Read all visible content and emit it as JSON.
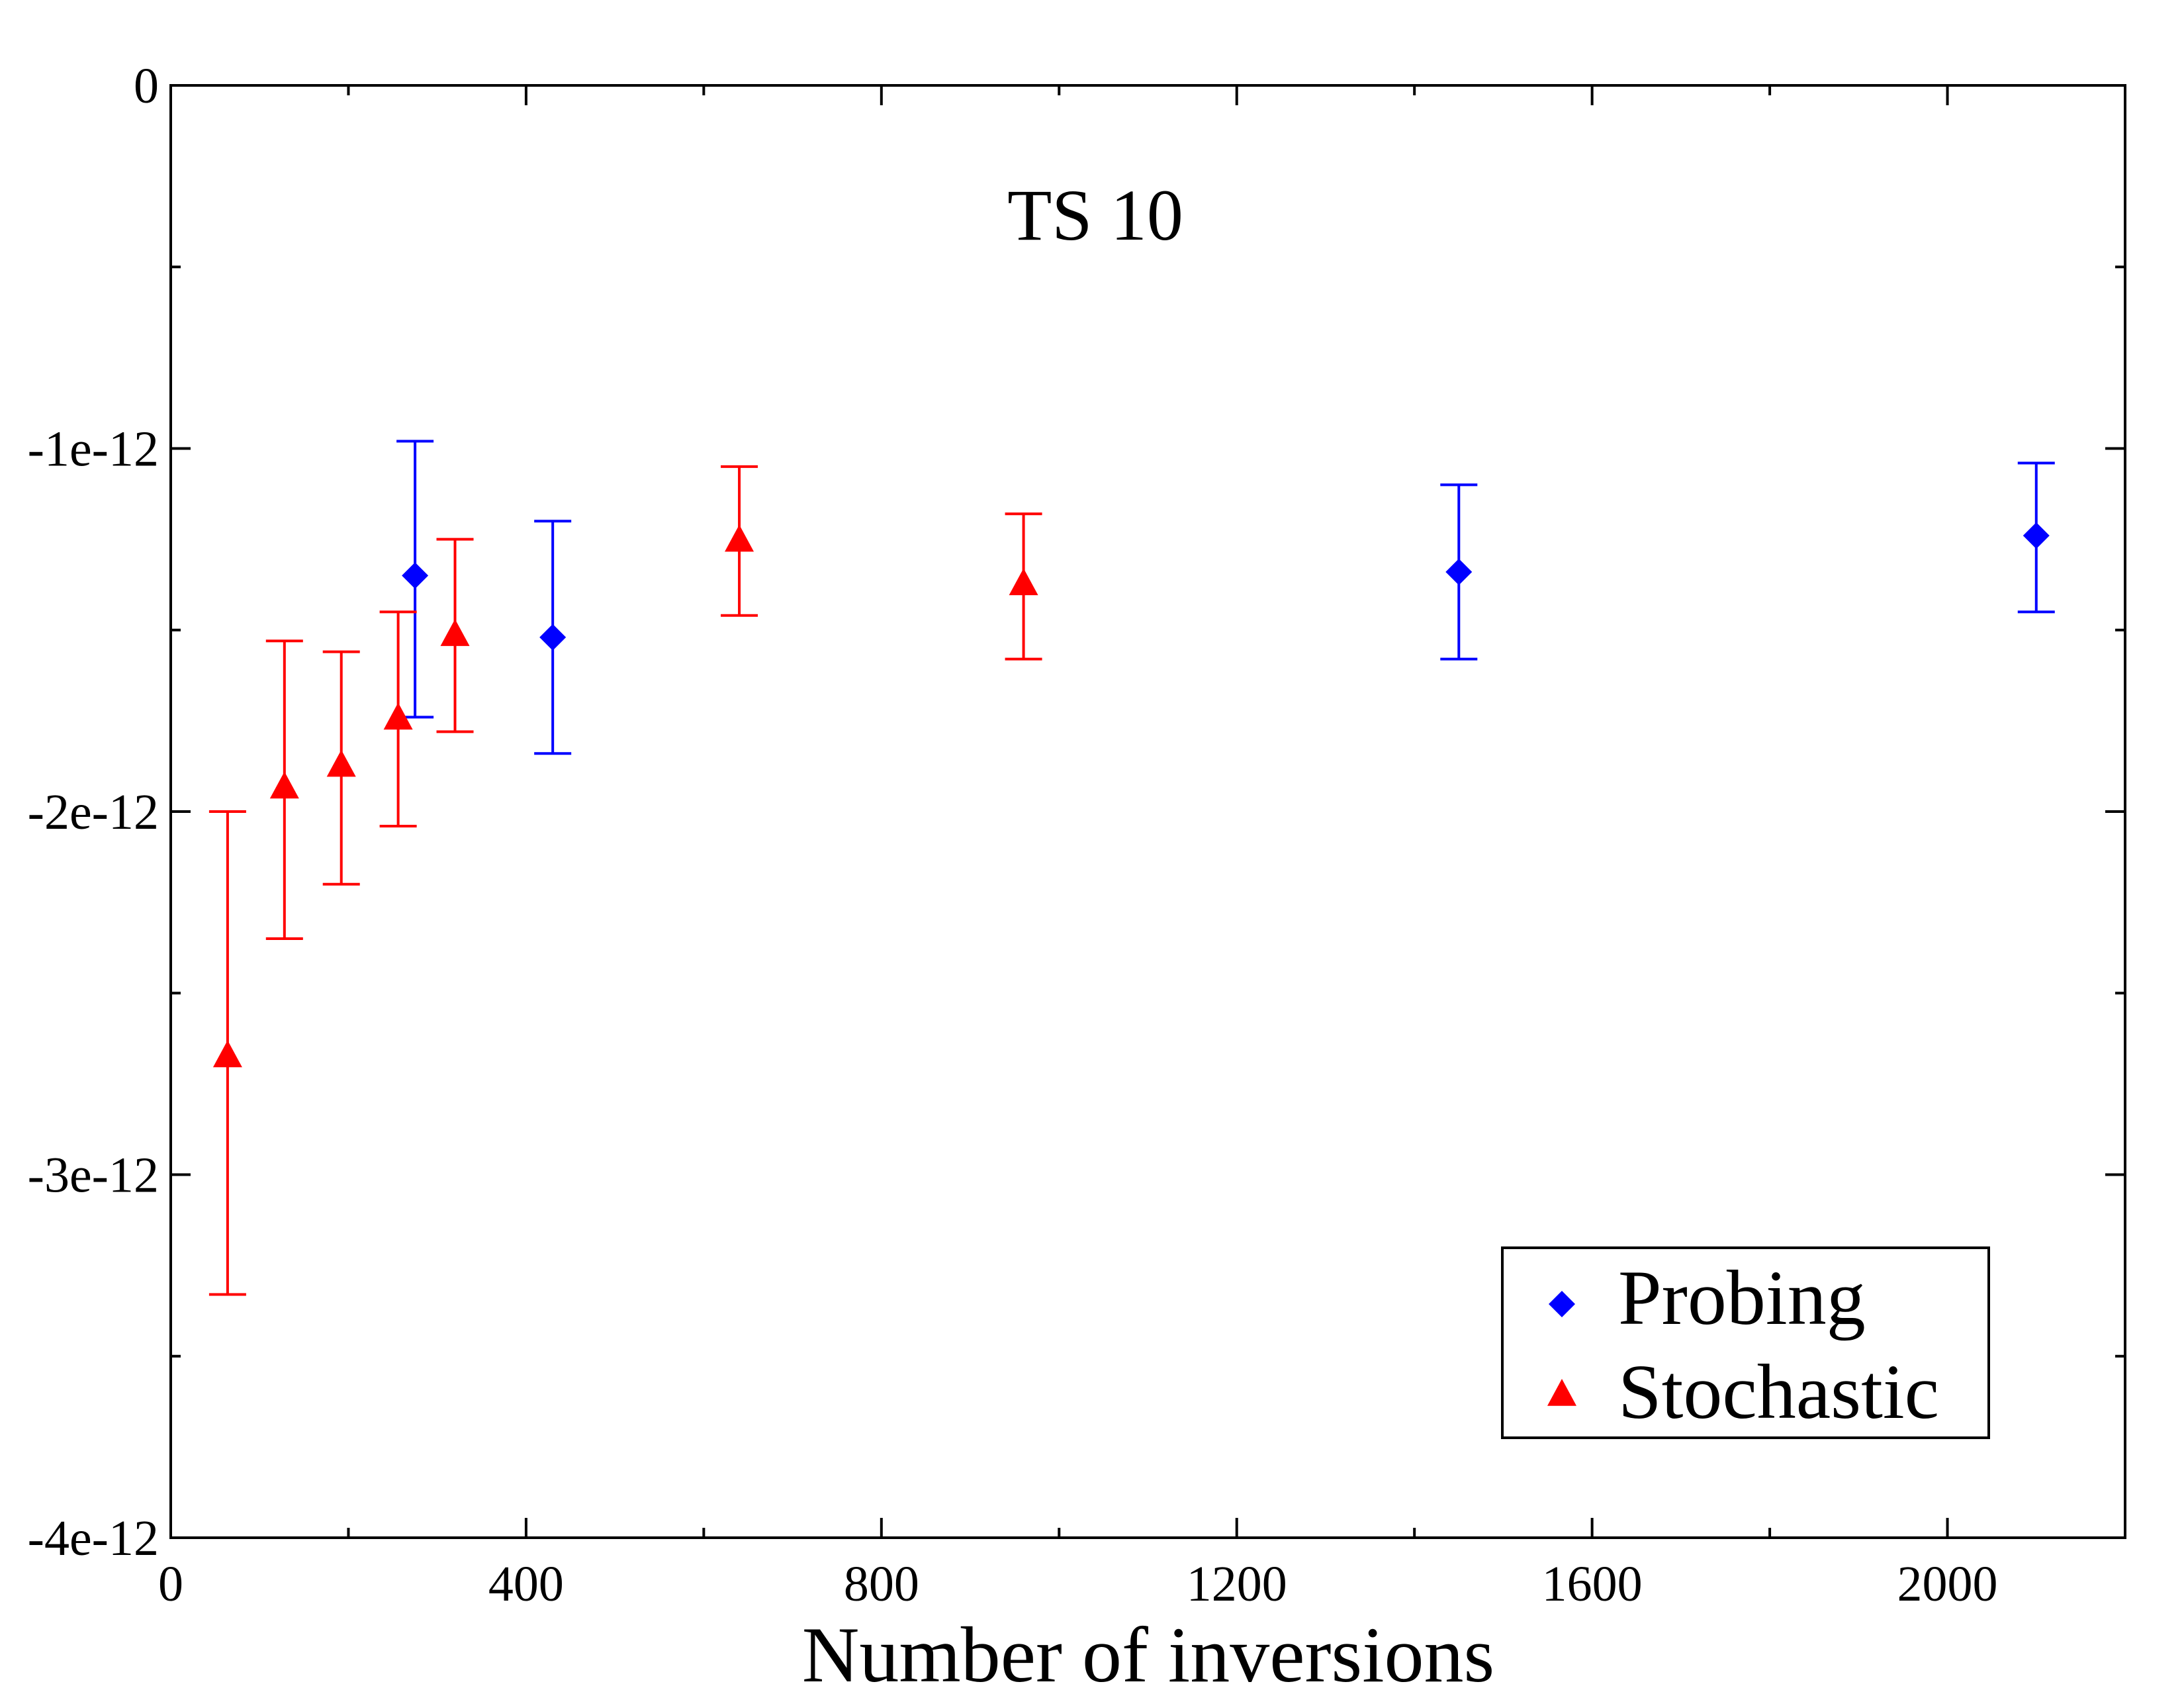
{
  "chart_data": {
    "type": "scatter",
    "title": "TS 10",
    "xlabel": "Number of inversions",
    "ylabel": "",
    "xlim": [
      0,
      2200
    ],
    "ylim": [
      -4e-12,
      0
    ],
    "x_major_ticks": [
      0,
      400,
      800,
      1200,
      1600,
      2000
    ],
    "x_tick_labels": [
      "0",
      "400",
      "800",
      "1200",
      "1600",
      "2000"
    ],
    "x_minor_ticks": [
      200,
      600,
      1000,
      1400,
      1800
    ],
    "y_major_ticks": [
      0,
      -1e-12,
      -2e-12,
      -3e-12,
      -4e-12
    ],
    "y_tick_labels": [
      "0",
      "-1e-12",
      "-2e-12",
      "-3e-12",
      "-4e-12"
    ],
    "y_minor_ticks": [
      -5e-13,
      -1.5e-12,
      -2.5e-12,
      -3.5e-12
    ],
    "grid": false,
    "legend_position": "bottom-right",
    "series": [
      {
        "name": "Probing",
        "color": "#0000ff",
        "marker": "diamond",
        "points": [
          {
            "x": 275,
            "y": -1.35e-12,
            "err_low": -1.74e-12,
            "err_high": -9.8e-13
          },
          {
            "x": 430,
            "y": -1.52e-12,
            "err_low": -1.84e-12,
            "err_high": -1.2e-12
          },
          {
            "x": 1450,
            "y": -1.34e-12,
            "err_low": -1.58e-12,
            "err_high": -1.1e-12
          },
          {
            "x": 2100,
            "y": -1.24e-12,
            "err_low": -1.45e-12,
            "err_high": -1.04e-12
          }
        ]
      },
      {
        "name": "Stochastic",
        "color": "#ff0000",
        "marker": "triangle",
        "points": [
          {
            "x": 64,
            "y": -2.67e-12,
            "err_low": -3.33e-12,
            "err_high": -2e-12
          },
          {
            "x": 128,
            "y": -1.93e-12,
            "err_low": -2.35e-12,
            "err_high": -1.53e-12
          },
          {
            "x": 192,
            "y": -1.87e-12,
            "err_low": -2.2e-12,
            "err_high": -1.56e-12
          },
          {
            "x": 256,
            "y": -1.74e-12,
            "err_low": -2.04e-12,
            "err_high": -1.45e-12
          },
          {
            "x": 320,
            "y": -1.51e-12,
            "err_low": -1.78e-12,
            "err_high": -1.25e-12
          },
          {
            "x": 640,
            "y": -1.25e-12,
            "err_low": -1.46e-12,
            "err_high": -1.05e-12
          },
          {
            "x": 960,
            "y": -1.37e-12,
            "err_low": -1.58e-12,
            "err_high": -1.18e-12
          }
        ]
      }
    ]
  }
}
